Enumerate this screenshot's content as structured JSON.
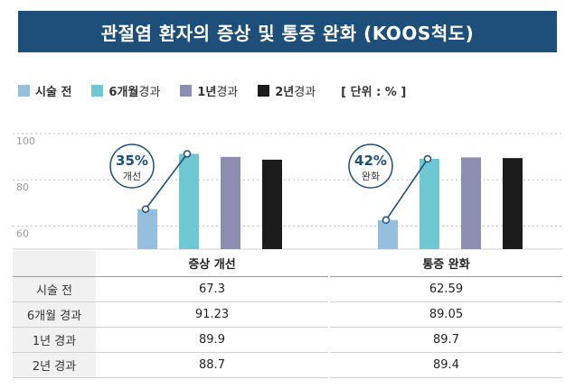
{
  "title": "관절염 환자의 증상 및 통증 완화 (KOOS척도)",
  "legend": {
    "items": [
      {
        "strong": "시술 전",
        "rest": "",
        "color": "#96bedd"
      },
      {
        "strong": "6개월",
        "rest": " 경과",
        "color": "#6ec8d2"
      },
      {
        "strong": "1년",
        "rest": " 경과",
        "color": "#8c8fb2"
      },
      {
        "strong": "2년",
        "rest": " 경과",
        "color": "#1c1c1c"
      }
    ],
    "unit": "[ 단위 : % ]"
  },
  "chart_data": {
    "type": "bar",
    "categories": [
      "증상 개선",
      "통증 완화"
    ],
    "series": [
      {
        "name": "시술 전",
        "values": [
          67.3,
          62.59
        ],
        "color": "#96bedd"
      },
      {
        "name": "6개월 경과",
        "values": [
          91.23,
          89.05
        ],
        "color": "#6ec8d2"
      },
      {
        "name": "1년 경과",
        "values": [
          89.9,
          89.7
        ],
        "color": "#8c8fb2"
      },
      {
        "name": "2년 경과",
        "values": [
          88.7,
          89.4
        ],
        "color": "#1c1c1c"
      }
    ],
    "yticks": [
      60,
      80,
      100
    ],
    "ylim": [
      50,
      100
    ],
    "grid": true,
    "annotations": [
      {
        "pct": "35%",
        "text": "개선"
      },
      {
        "pct": "42%",
        "text": "완화"
      }
    ]
  },
  "table": {
    "headers": [
      "증상 개선",
      "통증 완화"
    ],
    "rows": [
      {
        "label": "시술 전",
        "values": [
          "67.3",
          "62.59"
        ]
      },
      {
        "label": "6개월 경과",
        "values": [
          "91.23",
          "89.05"
        ]
      },
      {
        "label": "1년 경과",
        "values": [
          "89.9",
          "89.7"
        ]
      },
      {
        "label": "2년 경과",
        "values": [
          "88.7",
          "89.4"
        ]
      }
    ]
  }
}
